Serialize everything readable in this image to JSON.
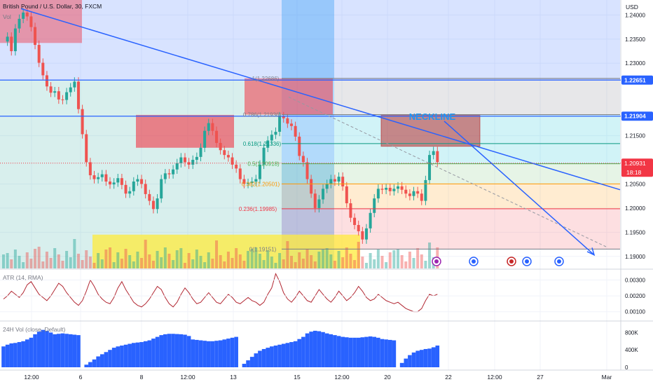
{
  "header": {
    "symbol_title": "British Pound / U.S. Dollar, 30, FXCM",
    "volume_label": "Vol",
    "currency": "USD"
  },
  "colors": {
    "candle": "#26a69a",
    "trend_line": "#2962ff",
    "indicator_line": "#b22833",
    "volume_bars": "#2962ff",
    "bullish_volume": "#26a69a",
    "bearish_volume": "#ef5350",
    "price_badge": "#f23645",
    "neckline_text": "#2196f3"
  },
  "chart_data": [
    {
      "type": "line",
      "title": "",
      "subtitle": "",
      "xlabel": "",
      "ylabel": "",
      "currency": "USD",
      "ylim": [
        1.1875,
        1.2431
      ],
      "y_ticks": [
        1.24,
        1.235,
        1.23,
        1.22651,
        1.21904,
        1.215,
        1.20931,
        1.205,
        1.2,
        1.195,
        1.19
      ],
      "y_tick_labels": [
        "1.24000",
        "1.23500",
        "1.23000",
        "1.22651",
        "1.21904",
        "1.21500",
        "1.20931",
        "1.20500",
        "1.20000",
        "1.19500",
        "1.19000"
      ],
      "x_tick_labels": [
        "12:00",
        "6",
        "8",
        "12:00",
        "13",
        "15",
        "12:00",
        "20",
        "22",
        "12:00",
        "27",
        "Mar"
      ],
      "current_price": 1.20931,
      "current_price_label": "1.20931",
      "countdown": "18:18",
      "series": [
        {
          "values": [
            1.2345,
            1.2355,
            1.2325,
            1.2372,
            1.2392,
            1.2405,
            1.2397,
            1.2375,
            1.2338,
            1.2301,
            1.2275,
            1.2252,
            1.2239,
            1.2242,
            1.2225,
            1.2224,
            1.224,
            1.225,
            1.2262,
            1.2205,
            1.2153,
            1.2095,
            1.2068,
            1.206,
            1.2064,
            1.207,
            1.2055,
            1.2049,
            1.2053,
            1.2062,
            1.2048,
            1.203,
            1.2035,
            1.2055,
            1.206,
            1.205,
            1.2029,
            1.2015,
            1.1998,
            1.202,
            1.206,
            1.2072,
            1.207,
            1.208,
            1.2093,
            1.2105,
            1.2095,
            1.209,
            1.21,
            1.2106,
            1.2125,
            1.216,
            1.2176,
            1.216,
            1.2135,
            1.212,
            1.211,
            1.2105,
            1.209,
            1.2082,
            1.206,
            1.205,
            1.2052,
            1.2055,
            1.206,
            1.209,
            1.2125,
            1.214,
            1.2152,
            1.2158,
            1.219,
            1.2186,
            1.2175,
            1.217,
            1.2148,
            1.2108,
            1.2095,
            1.206,
            1.203,
            1.2,
            1.2018,
            1.204,
            1.205,
            1.206,
            1.2055,
            1.2065,
            1.2045,
            1.201,
            1.198,
            1.1965,
            1.1952,
            1.1935,
            1.1958,
            1.199,
            1.202,
            1.204,
            1.2038,
            1.2042,
            1.2035,
            1.204,
            1.2045,
            1.2038,
            1.203,
            1.2025,
            1.2035,
            1.203,
            1.2015,
            1.2058,
            1.211,
            1.2118,
            1.2095
          ]
        }
      ],
      "fibonacci": [
        {
          "ratio": "1",
          "price": 1.22686,
          "label": "1(1.22686)"
        },
        {
          "ratio": "0.786",
          "price": 1.21936,
          "label": "0.786(1.21936)"
        },
        {
          "ratio": "0.618",
          "price": 1.21336,
          "label": "0.618(1.21336)"
        },
        {
          "ratio": "0.5",
          "price": 1.20918,
          "label": "0.5(1.20918)"
        },
        {
          "ratio": "0.382",
          "price": 1.20501,
          "label": "0.382(1.20501)"
        },
        {
          "ratio": "0.236",
          "price": 1.19985,
          "label": "0.236(1.19985)"
        },
        {
          "ratio": "0",
          "price": 1.19151,
          "label": "0(1.19151)"
        }
      ],
      "horizontal_levels": [
        1.24332,
        1.22651,
        1.21904
      ],
      "annotations": {
        "neckline": "NECKLINE"
      }
    },
    {
      "type": "line",
      "title": "",
      "legend": "ATR (14, RMA)",
      "ylim": [
        0.0005,
        0.0036
      ],
      "y_tick_labels": [
        "0.00300",
        "0.00200",
        "0.00100"
      ],
      "y_ticks": [
        0.003,
        0.002,
        0.001
      ],
      "series": [
        {
          "values": [
            0.0018,
            0.002,
            0.0023,
            0.0021,
            0.0019,
            0.0022,
            0.0027,
            0.0029,
            0.0025,
            0.0021,
            0.0019,
            0.0017,
            0.002,
            0.0024,
            0.0028,
            0.0026,
            0.0022,
            0.0019,
            0.0016,
            0.0014,
            0.0017,
            0.0023,
            0.003,
            0.0026,
            0.0021,
            0.0018,
            0.0016,
            0.0015,
            0.0019,
            0.0025,
            0.0029,
            0.0024,
            0.002,
            0.0016,
            0.0014,
            0.0013,
            0.0015,
            0.0018,
            0.0022,
            0.0026,
            0.0024,
            0.0019,
            0.0015,
            0.0013,
            0.0016,
            0.0021,
            0.0025,
            0.0022,
            0.0018,
            0.0015,
            0.0016,
            0.0019,
            0.0022,
            0.0019,
            0.0016,
            0.0015,
            0.0018,
            0.0021,
            0.0019,
            0.0016,
            0.0015,
            0.0017,
            0.0019,
            0.0017,
            0.0016,
            0.0014,
            0.0016,
            0.0021,
            0.0025,
            0.0034,
            0.0029,
            0.0022,
            0.0018,
            0.0016,
            0.0019,
            0.0023,
            0.002,
            0.0017,
            0.0016,
            0.002,
            0.0024,
            0.0021,
            0.0018,
            0.0016,
            0.0019,
            0.0023,
            0.002,
            0.0017,
            0.0019,
            0.0022,
            0.0026,
            0.0023,
            0.0019,
            0.0017,
            0.0018,
            0.0021,
            0.0019,
            0.0017,
            0.0016,
            0.0015,
            0.0016,
            0.0014,
            0.0012,
            0.0011,
            0.001,
            0.001,
            0.0012,
            0.0017,
            0.0021,
            0.002,
            0.0021
          ]
        }
      ]
    },
    {
      "type": "area",
      "title": "",
      "legend": "24H Vol (close, Default)",
      "ylim": [
        0,
        1000000
      ],
      "y_tick_labels": [
        "800K",
        "400K",
        "0"
      ],
      "y_ticks": [
        800000,
        400000,
        0
      ],
      "segments": [
        {
          "start": 0,
          "end": 19,
          "values": [
            480000,
            520000,
            550000,
            560000,
            580000,
            600000,
            640000,
            680000,
            760000,
            820000,
            860000,
            840000,
            800000,
            760000,
            770000,
            780000,
            770000,
            760000,
            750000,
            740000
          ]
        },
        {
          "start": 21,
          "end": 59,
          "values": [
            60000,
            120000,
            180000,
            250000,
            300000,
            350000,
            400000,
            450000,
            480000,
            500000,
            520000,
            540000,
            560000,
            570000,
            580000,
            600000,
            620000,
            660000,
            700000,
            740000,
            760000,
            770000,
            770000,
            765000,
            760000,
            750000,
            720000,
            640000,
            630000,
            620000,
            610000,
            600000,
            600000,
            610000,
            620000,
            640000,
            660000,
            680000,
            700000
          ]
        },
        {
          "start": 61,
          "end": 99,
          "values": [
            80000,
            160000,
            240000,
            320000,
            380000,
            420000,
            450000,
            480000,
            500000,
            520000,
            540000,
            560000,
            580000,
            600000,
            650000,
            700000,
            780000,
            820000,
            840000,
            830000,
            810000,
            780000,
            760000,
            740000,
            720000,
            700000,
            690000,
            680000,
            680000,
            680000,
            690000,
            700000,
            710000,
            700000,
            680000,
            650000,
            640000,
            630000,
            620000
          ]
        },
        {
          "start": 101,
          "end": 110,
          "values": [
            100000,
            200000,
            280000,
            340000,
            380000,
            400000,
            420000,
            430000,
            460000,
            500000
          ]
        }
      ]
    }
  ]
}
